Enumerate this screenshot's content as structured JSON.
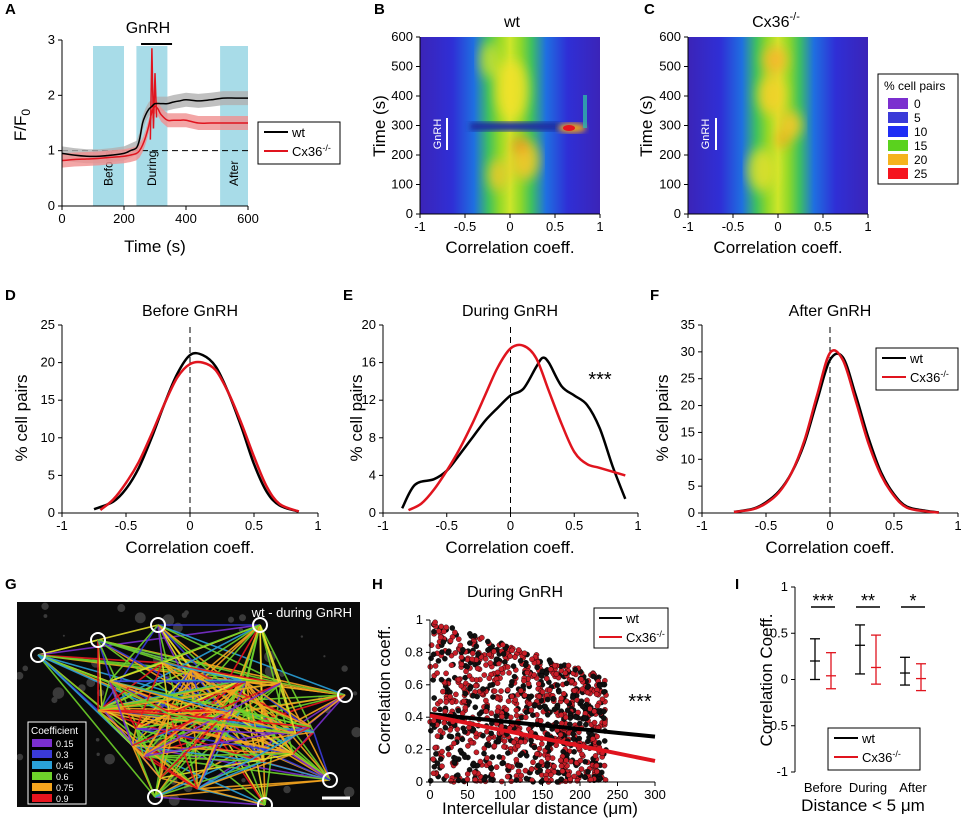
{
  "chart_data": [
    {
      "panel": "A",
      "type": "line",
      "top_label": "GnRH",
      "xlabel": "Time (s)",
      "ylabel": "F/F0",
      "xticks": [
        0,
        200,
        400,
        600
      ],
      "yticks": [
        0,
        1,
        2,
        3
      ],
      "xlim": [
        0,
        600
      ],
      "ylim": [
        0,
        3
      ],
      "phases": [
        {
          "label": "Before",
          "start": 100,
          "end": 200
        },
        {
          "label": "During",
          "start": 240,
          "end": 340
        },
        {
          "label": "After",
          "start": 510,
          "end": 600
        }
      ],
      "gnrh_bar": [
        255,
        355
      ],
      "baseline": 1,
      "series": [
        {
          "name": "wt",
          "color": "#000000",
          "x": [
            0,
            40,
            80,
            120,
            160,
            200,
            220,
            240,
            250,
            260,
            270,
            280,
            290,
            300,
            320,
            340,
            360,
            380,
            400,
            440,
            480,
            520,
            560,
            600
          ],
          "y": [
            0.95,
            0.92,
            0.9,
            0.9,
            0.92,
            0.95,
            1.0,
            1.05,
            1.2,
            1.5,
            1.65,
            1.75,
            1.8,
            1.85,
            1.85,
            1.85,
            1.88,
            1.9,
            1.92,
            1.9,
            1.92,
            1.95,
            1.95,
            1.95
          ]
        },
        {
          "name": "Cx36-/-",
          "color": "#e0141e",
          "x": [
            0,
            40,
            80,
            120,
            160,
            200,
            220,
            240,
            250,
            260,
            270,
            280,
            290,
            300,
            310,
            320,
            340,
            360,
            380,
            400,
            440,
            480,
            520,
            560,
            600
          ],
          "y": [
            0.82,
            0.84,
            0.85,
            0.86,
            0.88,
            0.9,
            0.92,
            0.95,
            1.0,
            1.1,
            1.25,
            1.45,
            1.7,
            1.8,
            1.75,
            1.65,
            1.55,
            1.55,
            1.55,
            1.55,
            1.5,
            1.5,
            1.5,
            1.5,
            1.5
          ]
        }
      ],
      "legend": [
        {
          "name": "wt",
          "label": "wt"
        },
        {
          "name": "Cx36-/-",
          "label": "Cx36",
          "sup": "-/-"
        }
      ]
    },
    {
      "panel": "B",
      "type": "heatmap",
      "title": "wt",
      "xlabel": "Correlation coeff.",
      "ylabel": "Time (s)",
      "xticks": [
        "-1",
        "-0.5",
        "0",
        "0.5",
        "1"
      ],
      "yticks": [
        "0",
        "100",
        "200",
        "300",
        "400",
        "500",
        "600"
      ],
      "xlim": [
        -1,
        1
      ],
      "ylim": [
        0,
        600
      ],
      "annotation": "GnRH"
    },
    {
      "panel": "C",
      "type": "heatmap",
      "title": "Cx36",
      "title_sup": "-/-",
      "xlabel": "Correlation coeff.",
      "ylabel": "Time (s)",
      "xticks": [
        "-1",
        "-0.5",
        "0",
        "0.5",
        "1"
      ],
      "yticks": [
        "0",
        "100",
        "200",
        "300",
        "400",
        "500",
        "600"
      ],
      "xlim": [
        -1,
        1
      ],
      "ylim": [
        0,
        600
      ],
      "annotation": "GnRH",
      "colorbar": {
        "title": "% cell pairs",
        "entries": [
          {
            "label": "0",
            "color": "#7b2fcf"
          },
          {
            "label": "5",
            "color": "#3a3ad8"
          },
          {
            "label": "10",
            "color": "#1e2df5"
          },
          {
            "label": "15",
            "color": "#5ad21e"
          },
          {
            "label": "20",
            "color": "#f5b31e"
          },
          {
            "label": "25",
            "color": "#f5141e"
          }
        ]
      }
    },
    {
      "panel": "D",
      "type": "line",
      "title": "Before GnRH",
      "xlabel": "Correlation coeff.",
      "ylabel": "% cell pairs",
      "xticks": [
        "-1",
        "-0.5",
        "0",
        "0.5",
        "1"
      ],
      "yticks": [
        "0",
        "5",
        "10",
        "15",
        "20",
        "25"
      ],
      "xlim": [
        -1,
        1
      ],
      "ylim": [
        0,
        25
      ],
      "series": [
        {
          "name": "wt",
          "color": "#000000",
          "x": [
            -0.75,
            -0.6,
            -0.5,
            -0.4,
            -0.3,
            -0.2,
            -0.1,
            0,
            0.1,
            0.2,
            0.3,
            0.4,
            0.5,
            0.6,
            0.7,
            0.85
          ],
          "y": [
            0.5,
            1.5,
            3.2,
            6,
            10,
            14.5,
            18.5,
            21,
            21,
            19.5,
            16,
            11.5,
            6.5,
            2.8,
            1,
            0.2
          ]
        },
        {
          "name": "Cx36-/-",
          "color": "#e0141e",
          "x": [
            -0.7,
            -0.6,
            -0.5,
            -0.4,
            -0.3,
            -0.2,
            -0.1,
            0,
            0.1,
            0.2,
            0.3,
            0.4,
            0.5,
            0.6,
            0.7,
            0.85
          ],
          "y": [
            0.4,
            1.8,
            4,
            6.8,
            10.5,
            14.5,
            18,
            19.8,
            20,
            19,
            16,
            12,
            7.5,
            3.5,
            1.2,
            0.2
          ]
        }
      ]
    },
    {
      "panel": "E",
      "type": "line",
      "title": "During GnRH",
      "xlabel": "Correlation coeff.",
      "ylabel": "% cell pairs",
      "xticks": [
        "-1",
        "-0.5",
        "0",
        "0.5",
        "1"
      ],
      "yticks": [
        "0",
        "4",
        "8",
        "12",
        "16",
        "20"
      ],
      "xlim": [
        -1,
        1
      ],
      "ylim": [
        0,
        20
      ],
      "annotation": "***",
      "series": [
        {
          "name": "wt",
          "color": "#000000",
          "x": [
            -0.85,
            -0.75,
            -0.6,
            -0.5,
            -0.4,
            -0.3,
            -0.2,
            -0.1,
            0,
            0.1,
            0.2,
            0.25,
            0.3,
            0.4,
            0.5,
            0.6,
            0.7,
            0.8,
            0.9
          ],
          "y": [
            0.5,
            3,
            3.6,
            4.5,
            6.2,
            8,
            9.8,
            11.2,
            12.5,
            13.2,
            15.5,
            16.5,
            16,
            13.5,
            12.5,
            11.5,
            9,
            5,
            1.5
          ]
        },
        {
          "name": "Cx36-/-",
          "color": "#e0141e",
          "x": [
            -0.8,
            -0.7,
            -0.6,
            -0.5,
            -0.4,
            -0.3,
            -0.2,
            -0.1,
            0,
            0.1,
            0.2,
            0.3,
            0.4,
            0.5,
            0.6,
            0.7,
            0.9
          ],
          "y": [
            0.3,
            1,
            2.5,
            4.5,
            6.8,
            9.5,
            12.5,
            15.5,
            17.5,
            17.8,
            16.5,
            13,
            9.5,
            6.5,
            5.2,
            4.8,
            4
          ]
        }
      ]
    },
    {
      "panel": "F",
      "type": "line",
      "title": "After GnRH",
      "xlabel": "Correlation coeff.",
      "ylabel": "% cell pairs",
      "xticks": [
        "-1",
        "-0.5",
        "0",
        "0.5",
        "1"
      ],
      "yticks": [
        "0",
        "5",
        "10",
        "15",
        "20",
        "25",
        "30",
        "35"
      ],
      "xlim": [
        -1,
        1
      ],
      "ylim": [
        0,
        35
      ],
      "series": [
        {
          "name": "wt",
          "color": "#000000",
          "x": [
            -0.75,
            -0.6,
            -0.5,
            -0.4,
            -0.3,
            -0.2,
            -0.1,
            0,
            0.1,
            0.2,
            0.3,
            0.4,
            0.5,
            0.6,
            0.75,
            0.85
          ],
          "y": [
            0.2,
            0.8,
            2,
            4,
            7.5,
            13,
            21,
            28.5,
            29,
            22,
            14,
            7.5,
            3.5,
            1.2,
            0.4,
            0.1
          ]
        },
        {
          "name": "Cx36-/-",
          "color": "#e0141e",
          "x": [
            -0.75,
            -0.6,
            -0.5,
            -0.4,
            -0.3,
            -0.2,
            -0.1,
            0,
            0.1,
            0.2,
            0.3,
            0.4,
            0.5,
            0.6,
            0.75,
            0.85
          ],
          "y": [
            0.2,
            0.7,
            1.8,
            3.8,
            7.5,
            13.5,
            22,
            29.8,
            28.5,
            21,
            13,
            7,
            3.2,
            1,
            0.3,
            0.1
          ]
        }
      ],
      "legend": [
        {
          "name": "wt",
          "label": "wt"
        },
        {
          "name": "Cx36-/-",
          "label": "Cx36",
          "sup": "-/-"
        }
      ]
    },
    {
      "panel": "H",
      "type": "scatter",
      "title": "During GnRH",
      "xlabel": "Intercellular distance (μm)",
      "ylabel": "Correlation coeff.",
      "xticks": [
        "0",
        "50",
        "100",
        "150",
        "200",
        "250",
        "300"
      ],
      "yticks": [
        "0",
        "0.2",
        "0.4",
        "0.6",
        "0.8",
        "1"
      ],
      "xlim": [
        0,
        300
      ],
      "ylim": [
        0,
        1
      ],
      "annotation": "***",
      "fits": [
        {
          "name": "wt",
          "color": "#000000",
          "x": [
            0,
            300
          ],
          "y": [
            0.42,
            0.28
          ]
        },
        {
          "name": "Cx36-/-",
          "color": "#e0141e",
          "x": [
            0,
            300
          ],
          "y": [
            0.41,
            0.13
          ]
        }
      ],
      "legend": [
        {
          "name": "wt",
          "label": "wt"
        },
        {
          "name": "Cx36-/-",
          "label": "Cx36",
          "sup": "-/-"
        }
      ]
    },
    {
      "panel": "I",
      "type": "errorbar",
      "xlabel": "Distance < 5 μm",
      "ylabel": "Correlation Coeff.",
      "categories": [
        "Before",
        "During",
        "After"
      ],
      "yticks": [
        "-1",
        "-0.5",
        "0",
        "0.5",
        "1"
      ],
      "ylim": [
        -1,
        1
      ],
      "significance": [
        "***",
        "**",
        "*"
      ],
      "series": [
        {
          "name": "wt",
          "color": "#000000",
          "mean": [
            0.2,
            0.37,
            0.07
          ],
          "low": [
            0.0,
            0.06,
            -0.06
          ],
          "high": [
            0.44,
            0.59,
            0.24
          ]
        },
        {
          "name": "Cx36-/-",
          "color": "#e0141e",
          "mean": [
            0.04,
            0.13,
            0.01
          ],
          "low": [
            -0.1,
            -0.05,
            -0.12
          ],
          "high": [
            0.29,
            0.48,
            0.17
          ]
        }
      ],
      "legend": [
        {
          "name": "wt",
          "label": "wt"
        },
        {
          "name": "Cx36-/-",
          "label": "Cx36",
          "sup": "-/-"
        }
      ]
    }
  ],
  "panel_letters": [
    "A",
    "B",
    "C",
    "D",
    "E",
    "F",
    "G",
    "H",
    "I"
  ],
  "image_g": {
    "caption": "wt - during GnRH",
    "legend_title": "Coefficient",
    "legend_entries": [
      {
        "label": "0.15",
        "color": "#7b2fcf"
      },
      {
        "label": "0.3",
        "color": "#3a3ad8"
      },
      {
        "label": "0.45",
        "color": "#2aa0d8"
      },
      {
        "label": "0.6",
        "color": "#6ed22a"
      },
      {
        "label": "0.75",
        "color": "#f5a51e"
      },
      {
        "label": "0.9",
        "color": "#e8141e"
      }
    ]
  }
}
